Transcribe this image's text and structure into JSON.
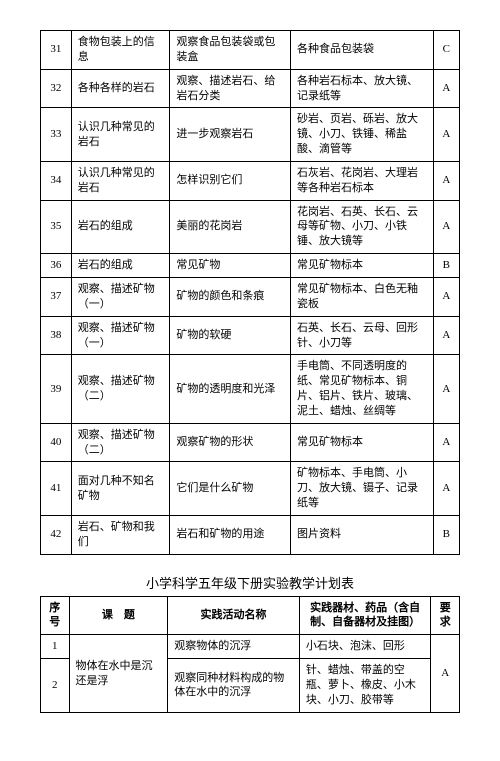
{
  "table1": {
    "rows": [
      {
        "n": "31",
        "topic": "食物包装上的信息",
        "act": "观察食品包装袋或包装盒",
        "mat": "各种食品包装袋",
        "req": "C"
      },
      {
        "n": "32",
        "topic": "各种各样的岩石",
        "act": "观察、描述岩石、给岩石分类",
        "mat": "各种岩石标本、放大镜、记录纸等",
        "req": "A"
      },
      {
        "n": "33",
        "topic": "认识几种常见的岩石",
        "act": "进一步观察岩石",
        "mat": "砂岩、页岩、砾岩、放大镜、小刀、铁锤、稀盐酸、滴管等",
        "req": "A"
      },
      {
        "n": "34",
        "topic": "认识几种常见的岩石",
        "act": "怎样识别它们",
        "mat": "石灰岩、花岗岩、大理岩等各种岩石标本",
        "req": "A"
      },
      {
        "n": "35",
        "topic": "岩石的组成",
        "act": "美丽的花岗岩",
        "mat": "花岗岩、石英、长石、云母等矿物、小刀、小铁锤、放大镜等",
        "req": "A"
      },
      {
        "n": "36",
        "topic": "岩石的组成",
        "act": "常见矿物",
        "mat": "常见矿物标本",
        "req": "B"
      },
      {
        "n": "37",
        "topic": "观察、描述矿物（一）",
        "act": "矿物的颜色和条痕",
        "mat": "常见矿物标本、白色无釉瓷板",
        "req": "A"
      },
      {
        "n": "38",
        "topic": "观察、描述矿物（一）",
        "act": "矿物的软硬",
        "mat": "石英、长石、云母、回形针、小刀等",
        "req": "A"
      },
      {
        "n": "39",
        "topic": "观察、描述矿物（二）",
        "act": "矿物的透明度和光泽",
        "mat": "手电筒、不同透明度的纸、常见矿物标本、铜片、铝片、铁片、玻璃、泥土、蜡烛、丝绸等",
        "req": "A"
      },
      {
        "n": "40",
        "topic": "观察、描述矿物（二）",
        "act": "观察矿物的形状",
        "mat": "常见矿物标本",
        "req": "A"
      },
      {
        "n": "41",
        "topic": "面对几种不知名矿物",
        "act": "它们是什么矿物",
        "mat": "矿物标本、手电筒、小刀、放大镜、镊子、记录纸等",
        "req": "A"
      },
      {
        "n": "42",
        "topic": "岩石、矿物和我们",
        "act": "岩石和矿物的用途",
        "mat": "图片资料",
        "req": "B"
      }
    ]
  },
  "caption": "小学科学五年级下册实验教学计划表",
  "table2": {
    "headers": {
      "n": "序号",
      "topic": "课　题",
      "act": "实践活动名称",
      "mat": "实践器材、药品（含自制、自备器材及挂图）",
      "req": "要求"
    },
    "rows": [
      {
        "n": "1",
        "topic": "",
        "act": "观察物体的沉浮",
        "mat": "小石块、泡沫、回形",
        "req": "A"
      },
      {
        "n": "2",
        "topic": "物体在水中是沉还是浮",
        "act": "观察同种材料构成的物体在水中的沉浮",
        "mat": "针、蜡烛、带盖的空瓶、萝卜、橡皮、小木块、小刀、胶带等",
        "req": "A"
      }
    ]
  }
}
